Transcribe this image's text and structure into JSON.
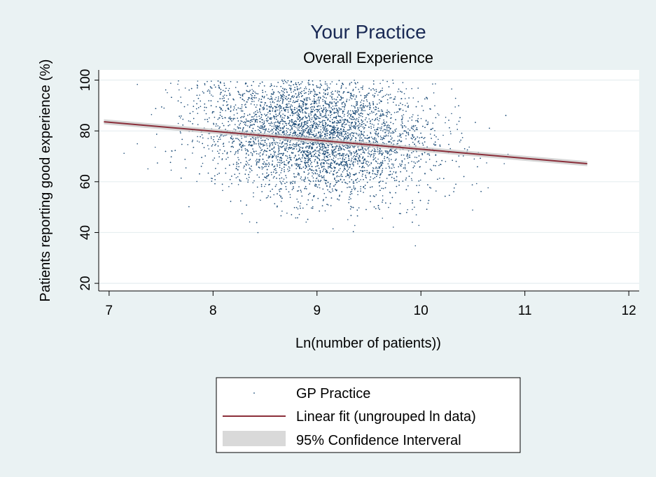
{
  "chart_data": {
    "type": "scatter",
    "title": "Your Practice",
    "subtitle": "Overall Experience",
    "xlabel": "Ln(number of patients))",
    "ylabel": "Patients reporting good experience (%)",
    "xlim": [
      6.9,
      12.1
    ],
    "ylim": [
      17,
      104
    ],
    "xticks": [
      7,
      8,
      9,
      10,
      11,
      12
    ],
    "yticks": [
      20,
      40,
      60,
      80,
      100
    ],
    "xtick_labels": [
      "7",
      "8",
      "9",
      "10",
      "11",
      "12"
    ],
    "ytick_labels": [
      "20",
      "40",
      "60",
      "80",
      "100"
    ],
    "grid": "horizontal",
    "legend_position": "bottom",
    "colors": {
      "points": "#1f4e79",
      "fit_line": "#8b2e3a",
      "ci_band": "#c8c8c8",
      "plot_bg": "#ffffff",
      "page_bg": "#eaf2f3",
      "title": "#1a2a55"
    },
    "scatter": {
      "approx_point_count": 6500,
      "x_center": 9.0,
      "x_sd": 0.55,
      "y_center": 78,
      "y_sd": 12,
      "y_max": 100
    },
    "series": [
      {
        "name": "GP Practice",
        "kind": "points"
      },
      {
        "name": "Linear fit (ungrouped ln data)",
        "kind": "line",
        "x": [
          6.95,
          11.6
        ],
        "y": [
          83.6,
          67.1
        ]
      },
      {
        "name": "95% Confidence Interveral",
        "kind": "band",
        "x": [
          6.95,
          11.6
        ],
        "lower": [
          82.6,
          66.1
        ],
        "upper": [
          84.6,
          68.1
        ]
      }
    ]
  }
}
